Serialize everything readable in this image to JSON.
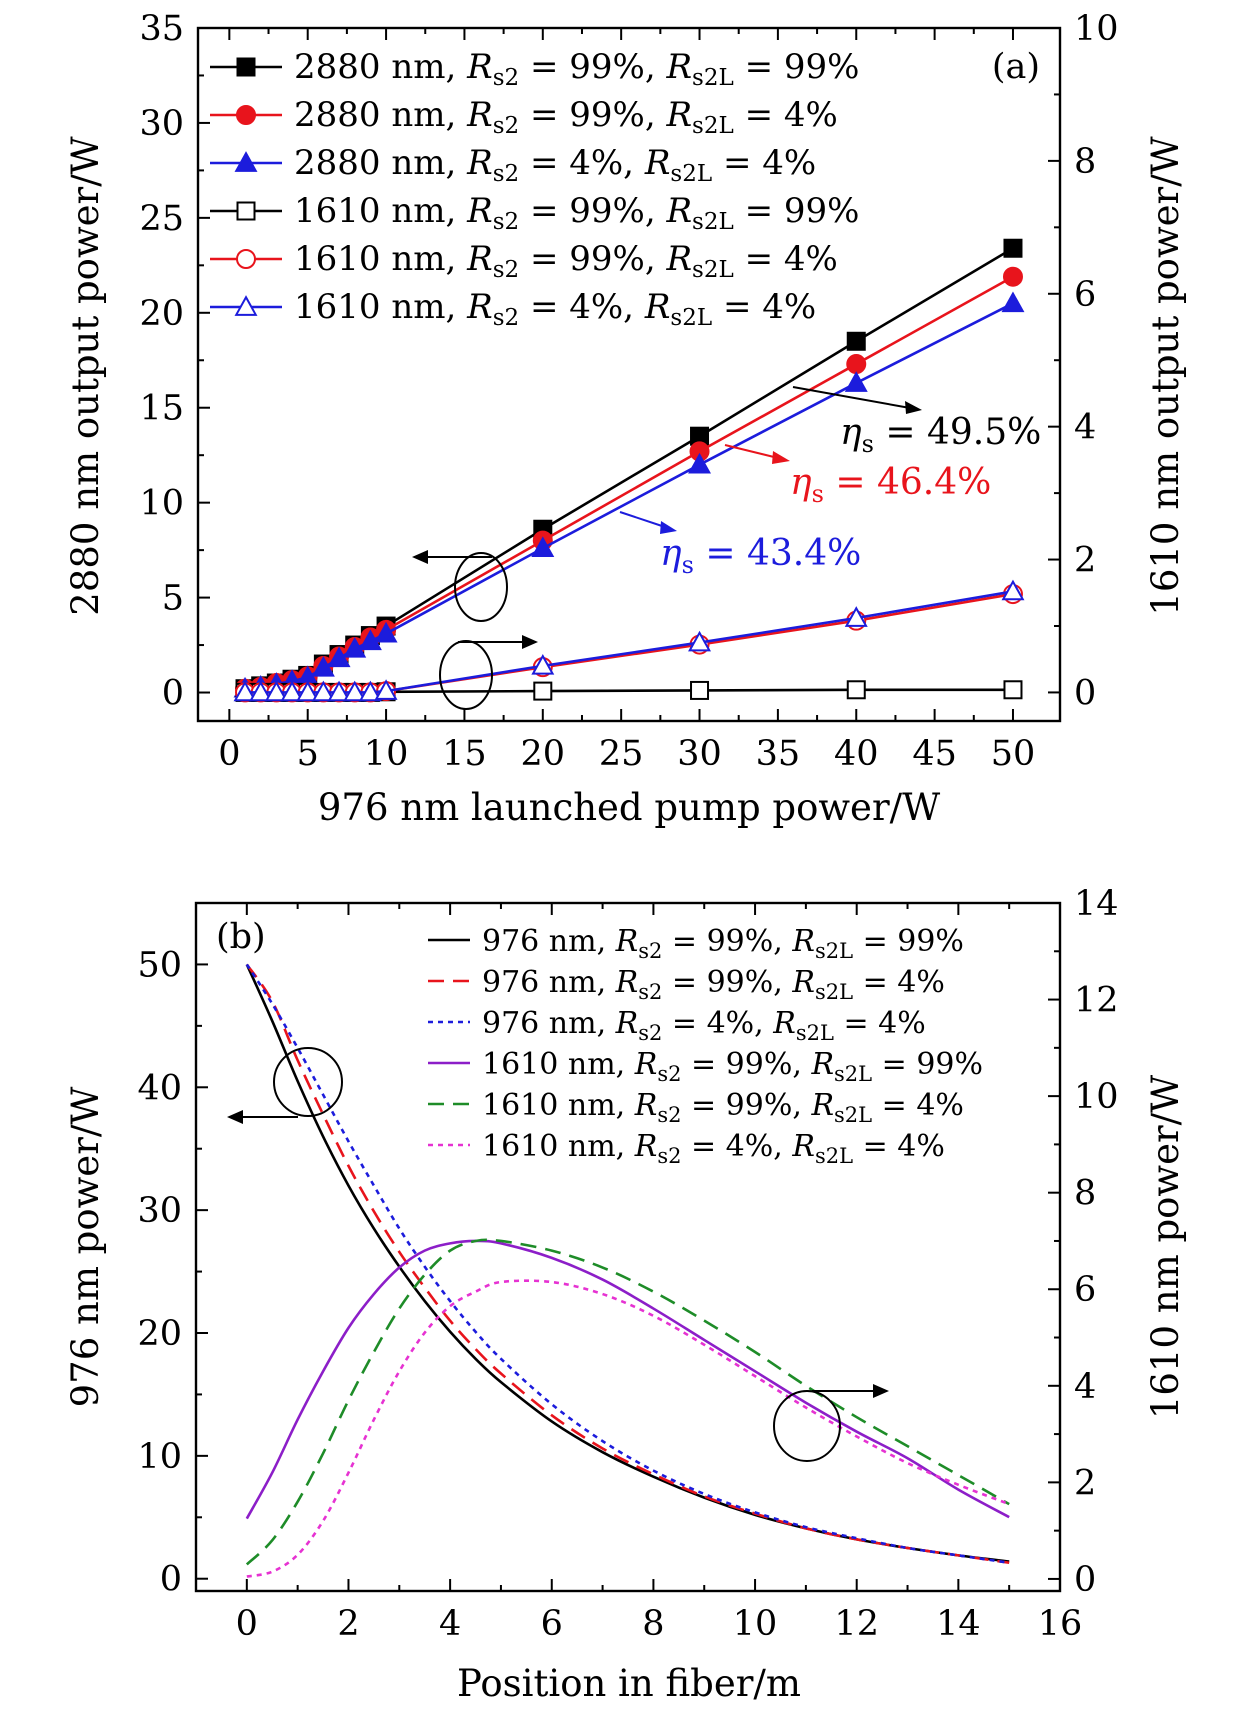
{
  "chart_data": [
    {
      "type": "line",
      "panel_label": "(a)",
      "xlabel": "976 nm launched pump power/W",
      "ylabel_left": "2880 nm output power/W",
      "ylabel_right": "1610 nm output power/W",
      "xlim": [
        -2,
        53
      ],
      "ylim_left": [
        -1.5,
        35
      ],
      "ylim_right": [
        -0.43,
        10
      ],
      "xticks": [
        0,
        5,
        10,
        15,
        20,
        25,
        30,
        35,
        40,
        45,
        50
      ],
      "yticks_left": [
        0,
        5,
        10,
        15,
        20,
        25,
        30,
        35
      ],
      "yticks_right": [
        0,
        2,
        4,
        6,
        8,
        10
      ],
      "legend_position": "top-left",
      "series": [
        {
          "name": "2880 nm, R_s2 = 99%, R_s2L = 99%",
          "legend": {
            "wl": "2880 nm,",
            "r1": "99%,",
            "r2": "99%"
          },
          "axis": "left",
          "color": "#000000",
          "marker": "square-filled",
          "x": [
            1,
            2,
            3,
            4,
            5,
            6,
            7,
            8,
            9,
            10,
            20,
            30,
            40,
            50
          ],
          "y": [
            0.2,
            0.35,
            0.5,
            0.7,
            0.9,
            1.5,
            2.0,
            2.5,
            3.0,
            3.5,
            8.6,
            13.5,
            18.5,
            23.4
          ]
        },
        {
          "name": "2880 nm, R_s2 = 99%, R_s2L = 4%",
          "legend": {
            "wl": "2880 nm,",
            "r1": "99%,",
            "r2": "4%"
          },
          "axis": "left",
          "color": "#e8141c",
          "marker": "circle-filled",
          "x": [
            1,
            2,
            3,
            4,
            5,
            6,
            7,
            8,
            9,
            10,
            20,
            30,
            40,
            50
          ],
          "y": [
            0.2,
            0.3,
            0.5,
            0.65,
            0.85,
            1.4,
            1.9,
            2.4,
            2.9,
            3.3,
            8.0,
            12.7,
            17.3,
            21.9
          ]
        },
        {
          "name": "2880 nm, R_s2 = 4%, R_s2L = 4%",
          "legend": {
            "wl": "2880 nm,",
            "r1": "4%,",
            "r2": "4%"
          },
          "axis": "left",
          "color": "#1c1cdc",
          "marker": "triangle-filled",
          "x": [
            1,
            2,
            3,
            4,
            5,
            6,
            7,
            8,
            9,
            10,
            20,
            30,
            40,
            50
          ],
          "y": [
            0.2,
            0.3,
            0.45,
            0.6,
            0.8,
            1.3,
            1.8,
            2.3,
            2.7,
            3.1,
            7.6,
            12.0,
            16.3,
            20.5
          ]
        },
        {
          "name": "1610 nm, R_s2 = 99%, R_s2L = 99%",
          "legend": {
            "wl": "1610 nm,",
            "r1": "99%,",
            "r2": "99%"
          },
          "axis": "right",
          "color": "#000000",
          "marker": "square-open",
          "x": [
            1,
            2,
            3,
            4,
            5,
            6,
            7,
            8,
            9,
            10,
            20,
            30,
            40,
            50
          ],
          "y": [
            0,
            0,
            0,
            0,
            0,
            0,
            0,
            0,
            0,
            0.01,
            0.02,
            0.03,
            0.04,
            0.04
          ]
        },
        {
          "name": "1610 nm, R_s2 = 99%, R_s2L = 4%",
          "legend": {
            "wl": "1610 nm,",
            "r1": "99%,",
            "r2": "4%"
          },
          "axis": "right",
          "color": "#e8141c",
          "marker": "circle-open",
          "x": [
            1,
            2,
            3,
            4,
            5,
            6,
            7,
            8,
            9,
            10,
            20,
            30,
            40,
            50
          ],
          "y": [
            0,
            0,
            0,
            0,
            0,
            0,
            0,
            0,
            0,
            0.02,
            0.38,
            0.72,
            1.08,
            1.48
          ]
        },
        {
          "name": "1610 nm, R_s2 = 4%, R_s2L = 4%",
          "legend": {
            "wl": "1610 nm,",
            "r1": "4%,",
            "r2": "4%"
          },
          "axis": "right",
          "color": "#1c1cdc",
          "marker": "triangle-open",
          "x": [
            1,
            2,
            3,
            4,
            5,
            6,
            7,
            8,
            9,
            10,
            20,
            30,
            40,
            50
          ],
          "y": [
            0,
            0,
            0,
            0,
            0,
            0,
            0,
            0,
            0,
            0.02,
            0.4,
            0.75,
            1.12,
            1.52
          ]
        }
      ],
      "annotations": [
        {
          "sym": "η",
          "sub": "s",
          "text": " = 49.5%",
          "color": "#000000"
        },
        {
          "sym": "η",
          "sub": "s",
          "text": " = 46.4%",
          "color": "#e8141c"
        },
        {
          "sym": "η",
          "sub": "s",
          "text": " = 43.4%",
          "color": "#1c1cdc"
        }
      ]
    },
    {
      "type": "line",
      "panel_label": "(b)",
      "xlabel": "Position in fiber/m",
      "ylabel_left": "976 nm power/W",
      "ylabel_right": "1610 nm power/W",
      "xlim": [
        -1,
        16
      ],
      "ylim_left": [
        -1,
        55
      ],
      "ylim_right": [
        -0.25,
        14
      ],
      "xticks": [
        0,
        2,
        4,
        6,
        8,
        10,
        12,
        14,
        16
      ],
      "yticks_left": [
        0,
        10,
        20,
        30,
        40,
        50
      ],
      "yticks_right": [
        0,
        2,
        4,
        6,
        8,
        10,
        12,
        14
      ],
      "legend_position": "top-right",
      "series": [
        {
          "name": "976 nm, R_s2 = 99%, R_s2L = 99%",
          "legend": {
            "wl": "976 nm,",
            "r1": "99%,",
            "r2": "99%"
          },
          "axis": "left",
          "color": "#000000",
          "dash": "solid",
          "x": [
            0,
            0.5,
            1,
            1.5,
            2,
            2.5,
            3,
            3.5,
            4,
            4.5,
            5,
            6,
            7,
            8,
            9,
            10,
            11,
            12,
            13,
            14,
            15
          ],
          "y": [
            50,
            45.4,
            40.5,
            36,
            32,
            28.5,
            25.4,
            22.6,
            20.1,
            17.9,
            16,
            12.8,
            10.3,
            8.3,
            6.6,
            5.2,
            4.1,
            3.2,
            2.5,
            1.9,
            1.4
          ]
        },
        {
          "name": "976 nm, R_s2 = 99%, R_s2L = 4%",
          "legend": {
            "wl": "976 nm,",
            "r1": "99%,",
            "r2": "4%"
          },
          "axis": "left",
          "color": "#e8141c",
          "dash": "dashed",
          "x": [
            0,
            0.5,
            1,
            1.5,
            2,
            2.5,
            3,
            3.5,
            4,
            4.5,
            5,
            6,
            7,
            8,
            9,
            10,
            11,
            12,
            13,
            14,
            15
          ],
          "y": [
            50,
            47,
            42.2,
            37.8,
            33.6,
            29.9,
            26.6,
            23.7,
            21,
            18.7,
            16.7,
            13.3,
            10.6,
            8.5,
            6.7,
            5.3,
            4.1,
            3.2,
            2.5,
            1.9,
            1.3
          ]
        },
        {
          "name": "976 nm, R_s2 = 4%, R_s2L = 4%",
          "legend": {
            "wl": "976 nm,",
            "r1": "4%,",
            "r2": "4%"
          },
          "axis": "left",
          "color": "#1c1cdc",
          "dash": "dotted",
          "x": [
            0,
            0.5,
            1,
            1.5,
            2,
            2.5,
            3,
            3.5,
            4,
            4.5,
            5,
            6,
            7,
            8,
            9,
            10,
            11,
            12,
            13,
            14,
            15
          ],
          "y": [
            50,
            46.8,
            43.2,
            39.4,
            35.6,
            32,
            28.5,
            25.4,
            22.6,
            20.1,
            17.9,
            14.2,
            11.2,
            8.8,
            6.9,
            5.4,
            4.2,
            3.3,
            2.5,
            1.9,
            1.3
          ]
        },
        {
          "name": "1610 nm, R_s2 = 99%, R_s2L = 99%",
          "legend": {
            "wl": "1610 nm,",
            "r1": "99%,",
            "r2": "99%"
          },
          "axis": "right",
          "color": "#8c1ec8",
          "dash": "solid",
          "x": [
            0,
            0.5,
            1,
            1.5,
            2,
            2.5,
            3,
            3.5,
            4,
            4.5,
            5,
            6,
            7,
            8,
            9,
            10,
            11,
            12,
            13,
            14,
            15
          ],
          "y": [
            1.25,
            2.2,
            3.3,
            4.3,
            5.2,
            5.9,
            6.45,
            6.8,
            6.95,
            7.0,
            6.95,
            6.65,
            6.2,
            5.6,
            4.95,
            4.3,
            3.65,
            3.05,
            2.5,
            1.85,
            1.28
          ]
        },
        {
          "name": "1610 nm, R_s2 = 99%, R_s2L = 4%",
          "legend": {
            "wl": "1610 nm,",
            "r1": "99%,",
            "r2": "4%"
          },
          "axis": "right",
          "color": "#1e8c28",
          "dash": "dashed",
          "x": [
            0,
            0.5,
            1,
            1.5,
            2,
            2.5,
            3,
            3.5,
            4,
            4.5,
            5,
            6,
            7,
            8,
            9,
            10,
            11,
            12,
            13,
            14,
            15
          ],
          "y": [
            0.3,
            0.8,
            1.6,
            2.6,
            3.7,
            4.7,
            5.6,
            6.3,
            6.8,
            7.0,
            7.0,
            6.8,
            6.45,
            5.95,
            5.35,
            4.7,
            4.0,
            3.35,
            2.75,
            2.15,
            1.55
          ]
        },
        {
          "name": "1610 nm, R_s2 = 4%, R_s2L = 4%",
          "legend": {
            "wl": "1610 nm,",
            "r1": "4%,",
            "r2": "4%"
          },
          "axis": "right",
          "color": "#e632d2",
          "dash": "dotted",
          "x": [
            0,
            0.5,
            1,
            1.5,
            2,
            2.5,
            3,
            3.5,
            4,
            4.5,
            5,
            6,
            7,
            8,
            9,
            10,
            11,
            12,
            13,
            14,
            15
          ],
          "y": [
            0.05,
            0.15,
            0.5,
            1.2,
            2.2,
            3.3,
            4.3,
            5.1,
            5.65,
            5.95,
            6.15,
            6.15,
            5.9,
            5.45,
            4.85,
            4.2,
            3.55,
            2.95,
            2.4,
            1.95,
            1.55
          ]
        }
      ]
    }
  ]
}
